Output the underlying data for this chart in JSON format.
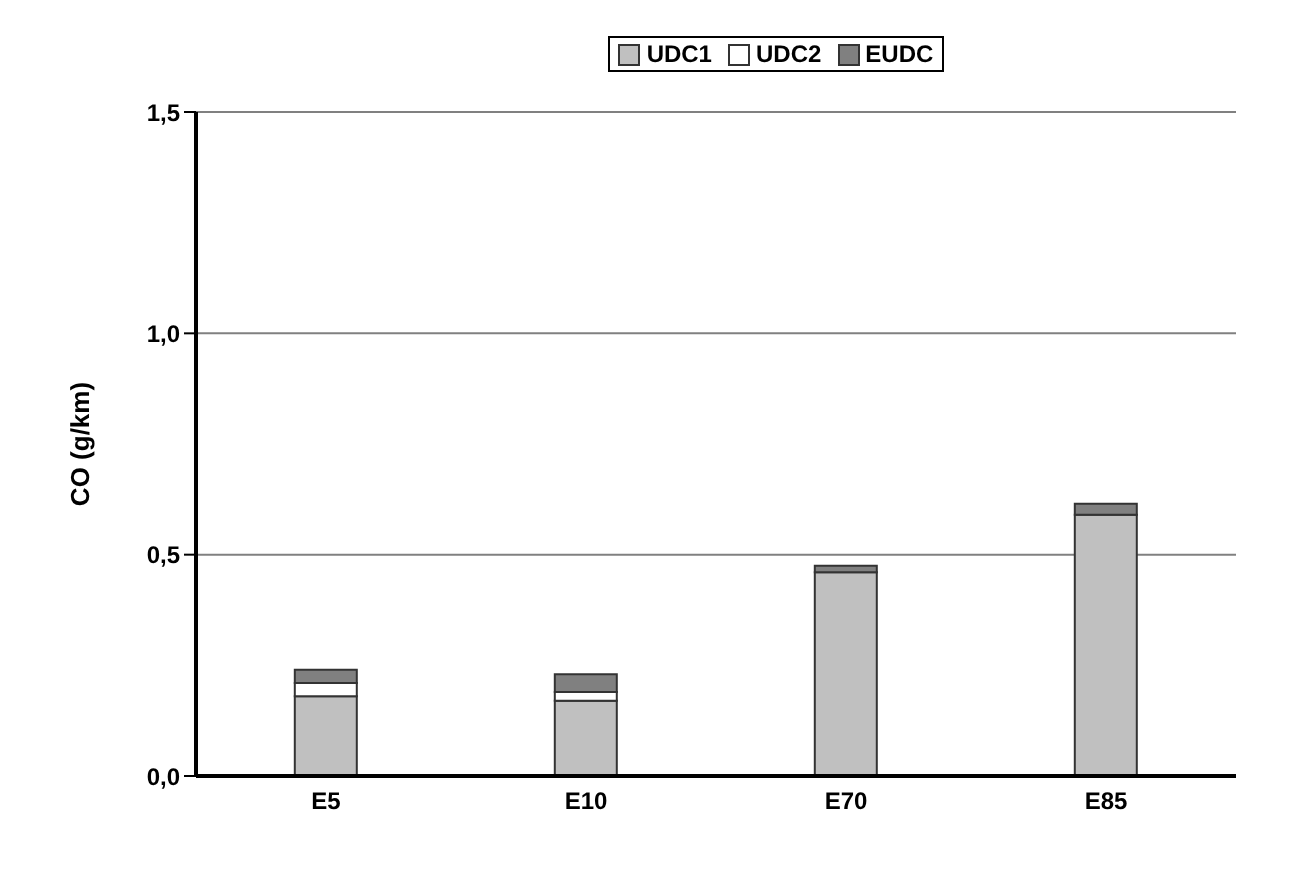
{
  "chart_data": {
    "type": "bar",
    "stacked": true,
    "ylabel": "CO (g/km)",
    "categories": [
      "E5",
      "E10",
      "E70",
      "E85"
    ],
    "series": [
      {
        "name": "UDC1",
        "color": "#c0c0c0",
        "values": [
          0.18,
          0.17,
          0.46,
          0.59
        ]
      },
      {
        "name": "UDC2",
        "color": "#ffffff",
        "values": [
          0.03,
          0.02,
          null,
          null
        ]
      },
      {
        "name": "EUDC",
        "color": "#808080",
        "values": [
          0.03,
          0.04,
          0.015,
          0.025
        ]
      }
    ],
    "ylim": [
      0,
      1.5
    ],
    "yticks": [
      {
        "value": 0,
        "label": "0,0"
      },
      {
        "value": 0.5,
        "label": "0,5"
      },
      {
        "value": 1,
        "label": "1,0"
      },
      {
        "value": 1.5,
        "label": "1,5"
      }
    ],
    "grid": "y",
    "legend": "top"
  }
}
